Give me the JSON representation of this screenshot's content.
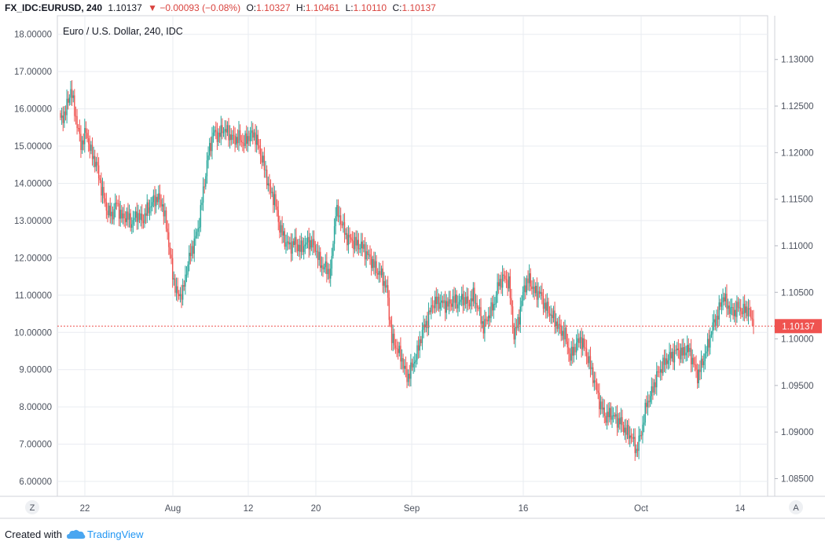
{
  "header": {
    "symbol": "FX_IDC:EURUSD, 240",
    "last": "1.10137",
    "change": "−0.00093 (−0.08%)",
    "open_label": "O:",
    "open": "1.10327",
    "high_label": "H:",
    "high": "1.10461",
    "low_label": "L:",
    "low": "1.10110",
    "close_label": "C:",
    "close": "1.10137"
  },
  "footer": {
    "created_with": "Created with",
    "brand": "TradingView"
  },
  "buttons": {
    "left_scale": "Z",
    "right_scale": "A"
  },
  "colors": {
    "up": "#26a69a",
    "down": "#ef5350",
    "grid": "#e9ecf1",
    "axis_text": "#4c525e",
    "price_line": "#ef5350"
  },
  "chart_data": {
    "type": "candlestick",
    "title": "Euro / U.S. Dollar, 240, IDC",
    "left_axis": {
      "ylim": [
        5.6,
        18.5
      ],
      "ticks": [
        "6.00000",
        "7.00000",
        "8.00000",
        "9.00000",
        "10.00000",
        "11.00000",
        "12.00000",
        "13.00000",
        "14.00000",
        "15.00000",
        "16.00000",
        "17.00000",
        "18.00000"
      ]
    },
    "right_axis": {
      "ylim": [
        1.0831,
        1.1347
      ],
      "ticks": [
        "1.08500",
        "1.09000",
        "1.09500",
        "1.10000",
        "1.10500",
        "1.11000",
        "1.11500",
        "1.12000",
        "1.12500",
        "1.13000"
      ]
    },
    "last_price": "1.10137",
    "last_price_value": 1.10137,
    "x_labels": [
      "22",
      "Aug",
      "12",
      "20",
      "Sep",
      "16",
      "Oct",
      "14"
    ],
    "grid": true,
    "path_values": [
      1.1234,
      1.1244,
      1.1268,
      1.1238,
      1.1208,
      1.1222,
      1.12,
      1.1188,
      1.1162,
      1.114,
      1.1132,
      1.1146,
      1.113,
      1.1132,
      1.1124,
      1.1134,
      1.1127,
      1.1138,
      1.1146,
      1.1152,
      1.1144,
      1.1114,
      1.1068,
      1.1046,
      1.105,
      1.1082,
      1.11,
      1.1118,
      1.1158,
      1.1198,
      1.1222,
      1.1218,
      1.1226,
      1.122,
      1.1214,
      1.1216,
      1.121,
      1.1218,
      1.122,
      1.1204,
      1.1184,
      1.116,
      1.115,
      1.112,
      1.1106,
      1.1099,
      1.1104,
      1.1096,
      1.1102,
      1.1104,
      1.1098,
      1.108,
      1.1076,
      1.107,
      1.1138,
      1.1128,
      1.111,
      1.1106,
      1.1102,
      1.11,
      1.1092,
      1.1084,
      1.1074,
      1.1068,
      1.1054,
      1.1,
      1.099,
      1.0978,
      1.0958,
      1.097,
      1.0985,
      1.1008,
      1.102,
      1.1038,
      1.104,
      1.1038,
      1.1036,
      1.1042,
      1.1038,
      1.1044,
      1.1038,
      1.1046,
      1.1032,
      1.1012,
      1.1025,
      1.1036,
      1.106,
      1.1066,
      1.106,
      1.1002,
      1.1024,
      1.1056,
      1.1064,
      1.105,
      1.105,
      1.1036,
      1.1028,
      1.102,
      1.101,
      1.1004,
      1.098,
      1.0992,
      1.1,
      1.0988,
      1.097,
      1.095,
      1.0928,
      1.0916,
      1.092,
      1.0914,
      1.091,
      1.09,
      1.0896,
      1.088,
      1.09,
      1.093,
      1.0942,
      1.096,
      1.097,
      1.0978,
      1.0982,
      1.0988,
      1.0984,
      1.099,
      1.0978,
      1.096,
      1.0975,
      1.0992,
      1.1014,
      1.1026,
      1.1046,
      1.1034,
      1.1028,
      1.1034,
      1.103,
      1.1032,
      1.1014
    ]
  }
}
